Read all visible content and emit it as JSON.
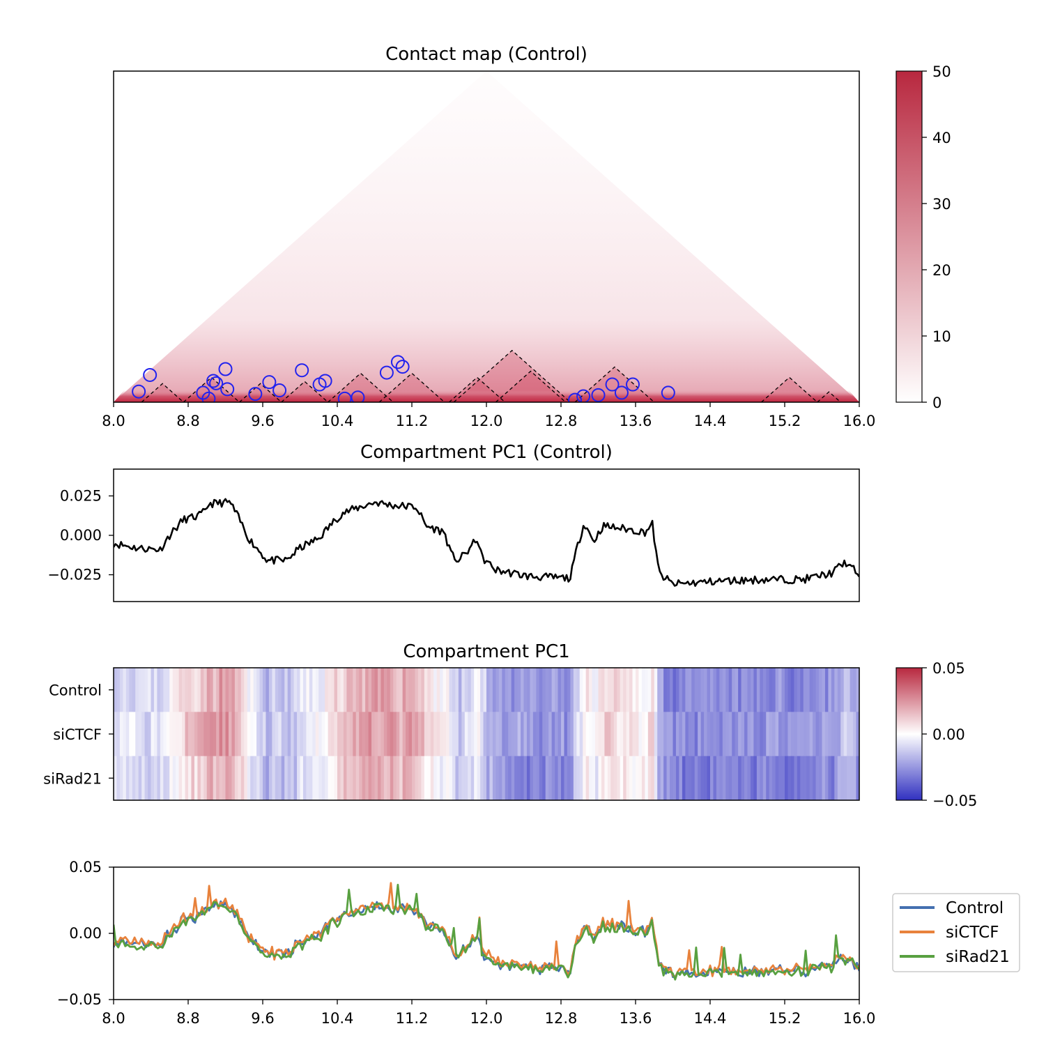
{
  "chart_data": [
    {
      "type": "heatmap",
      "title": "Contact map (Control)",
      "x_ticks": [
        "8.0",
        "8.8",
        "9.6",
        "10.4",
        "11.2",
        "12.0",
        "12.8",
        "13.6",
        "14.4",
        "15.2",
        "16.0"
      ],
      "xlim": [
        8.0,
        16.0
      ],
      "colorbar": {
        "ticks": [
          "0",
          "10",
          "20",
          "30",
          "40",
          "50"
        ],
        "range": [
          0,
          50
        ],
        "colors": [
          "#ffffff",
          "#b8283f"
        ]
      },
      "tads": [
        [
          8.3,
          8.75
        ],
        [
          8.75,
          9.35
        ],
        [
          9.35,
          9.8
        ],
        [
          9.8,
          10.3
        ],
        [
          10.3,
          11.0
        ],
        [
          10.85,
          11.55
        ],
        [
          11.6,
          12.2
        ],
        [
          11.65,
          12.9
        ],
        [
          12.1,
          12.85
        ],
        [
          12.95,
          13.8
        ],
        [
          14.95,
          15.55
        ],
        [
          15.55,
          15.8
        ]
      ],
      "loops": [
        {
          "x": 8.27,
          "y": 0.09
        },
        {
          "x": 8.39,
          "y": 0.23
        },
        {
          "x": 8.96,
          "y": 0.08
        },
        {
          "x": 9.02,
          "y": 0.03
        },
        {
          "x": 9.07,
          "y": 0.18
        },
        {
          "x": 9.1,
          "y": 0.16
        },
        {
          "x": 9.2,
          "y": 0.28
        },
        {
          "x": 9.22,
          "y": 0.11
        },
        {
          "x": 9.52,
          "y": 0.07
        },
        {
          "x": 9.67,
          "y": 0.17
        },
        {
          "x": 9.78,
          "y": 0.1
        },
        {
          "x": 10.02,
          "y": 0.27
        },
        {
          "x": 10.21,
          "y": 0.15
        },
        {
          "x": 10.27,
          "y": 0.18
        },
        {
          "x": 10.48,
          "y": 0.03
        },
        {
          "x": 10.62,
          "y": 0.04
        },
        {
          "x": 10.93,
          "y": 0.25
        },
        {
          "x": 11.05,
          "y": 0.34
        },
        {
          "x": 11.1,
          "y": 0.3
        },
        {
          "x": 12.95,
          "y": 0.02
        },
        {
          "x": 13.04,
          "y": 0.05
        },
        {
          "x": 13.2,
          "y": 0.06
        },
        {
          "x": 13.35,
          "y": 0.15
        },
        {
          "x": 13.45,
          "y": 0.08
        },
        {
          "x": 13.57,
          "y": 0.15
        },
        {
          "x": 13.95,
          "y": 0.08
        }
      ]
    },
    {
      "type": "line",
      "title": "Compartment PC1 (Control)",
      "y_ticks": [
        "0.025",
        "0.000",
        "−0.025"
      ],
      "ylim": [
        -0.042,
        0.042
      ],
      "xlim": [
        8.0,
        16.0
      ],
      "anchors": [
        [
          8.0,
          -0.005
        ],
        [
          8.25,
          -0.008
        ],
        [
          8.5,
          -0.009
        ],
        [
          8.6,
          -0.0
        ],
        [
          8.75,
          0.01
        ],
        [
          8.9,
          0.012
        ],
        [
          8.98,
          0.015
        ],
        [
          9.02,
          0.02
        ],
        [
          9.25,
          0.021
        ],
        [
          9.35,
          0.01
        ],
        [
          9.45,
          -0.002
        ],
        [
          9.65,
          -0.016
        ],
        [
          9.85,
          -0.016
        ],
        [
          10.0,
          -0.008
        ],
        [
          10.2,
          -0.002
        ],
        [
          10.35,
          0.008
        ],
        [
          10.45,
          0.014
        ],
        [
          10.6,
          0.017
        ],
        [
          10.8,
          0.021
        ],
        [
          11.0,
          0.019
        ],
        [
          11.25,
          0.018
        ],
        [
          11.35,
          0.006
        ],
        [
          11.55,
          0.002
        ],
        [
          11.62,
          -0.012
        ],
        [
          11.7,
          -0.016
        ],
        [
          11.8,
          -0.01
        ],
        [
          11.9,
          -0.002
        ],
        [
          11.95,
          -0.014
        ],
        [
          12.1,
          -0.022
        ],
        [
          12.45,
          -0.026
        ],
        [
          12.8,
          -0.027
        ],
        [
          12.9,
          -0.027
        ],
        [
          12.98,
          -0.006
        ],
        [
          13.05,
          0.008
        ],
        [
          13.15,
          -0.004
        ],
        [
          13.25,
          0.006
        ],
        [
          13.5,
          0.004
        ],
        [
          13.7,
          0.002
        ],
        [
          13.78,
          0.007
        ],
        [
          13.85,
          -0.024
        ],
        [
          14.0,
          -0.031
        ],
        [
          14.5,
          -0.029
        ],
        [
          15.0,
          -0.028
        ],
        [
          15.4,
          -0.028
        ],
        [
          15.7,
          -0.024
        ],
        [
          15.85,
          -0.017
        ],
        [
          16.0,
          -0.025
        ]
      ]
    },
    {
      "type": "heatmap",
      "title": "Compartment PC1",
      "rows": [
        "Control",
        "siCTCF",
        "siRad21"
      ],
      "xlim": [
        8.0,
        16.0
      ],
      "colorbar": {
        "ticks": [
          "0.05",
          "0.00",
          "−0.05"
        ],
        "range": [
          -0.05,
          0.05
        ],
        "colors": [
          "#3030c0",
          "#ffffff",
          "#b8283f"
        ]
      }
    },
    {
      "type": "line",
      "y_ticks": [
        "0.05",
        "0.00",
        "−0.05"
      ],
      "ylim": [
        -0.05,
        0.05
      ],
      "x_ticks": [
        "8.0",
        "8.8",
        "9.6",
        "10.4",
        "11.2",
        "12.0",
        "12.8",
        "13.6",
        "14.4",
        "15.2",
        "16.0"
      ],
      "xlim": [
        8.0,
        16.0
      ],
      "legend_position": "right",
      "series": [
        {
          "name": "Control",
          "color": "#4470b0"
        },
        {
          "name": "siCTCF",
          "color": "#e8823c"
        },
        {
          "name": "siRad21",
          "color": "#58a040"
        }
      ]
    }
  ]
}
